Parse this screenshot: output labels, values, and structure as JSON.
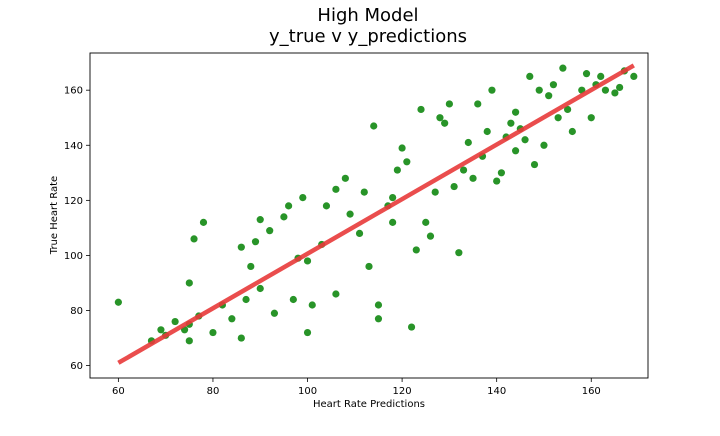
{
  "chart_data": {
    "type": "scatter",
    "title": [
      "High Model",
      "y_true v y_predictions"
    ],
    "xlabel": "Heart Rate Predictions",
    "ylabel": "True Heart Rate",
    "xlim": [
      54,
      172
    ],
    "ylim": [
      55.5,
      173.5
    ],
    "xticks": [
      60,
      80,
      100,
      120,
      140,
      160
    ],
    "yticks": [
      60,
      80,
      100,
      120,
      140,
      160
    ],
    "grid": false,
    "point_color": "#118811",
    "line_color": "#e83a3a",
    "regression_line": {
      "x": [
        60,
        169
      ],
      "y": [
        61,
        169
      ]
    },
    "points": [
      [
        60,
        83
      ],
      [
        67,
        69
      ],
      [
        69,
        73
      ],
      [
        70,
        71
      ],
      [
        72,
        76
      ],
      [
        74,
        73
      ],
      [
        75,
        75
      ],
      [
        75,
        69
      ],
      [
        76,
        106
      ],
      [
        75,
        90
      ],
      [
        77,
        78
      ],
      [
        78,
        112
      ],
      [
        80,
        72
      ],
      [
        82,
        82
      ],
      [
        84,
        77
      ],
      [
        86,
        70
      ],
      [
        86,
        103
      ],
      [
        88,
        96
      ],
      [
        89,
        105
      ],
      [
        90,
        113
      ],
      [
        90,
        88
      ],
      [
        92,
        109
      ],
      [
        93,
        79
      ],
      [
        95,
        114
      ],
      [
        96,
        118
      ],
      [
        97,
        84
      ],
      [
        99,
        121
      ],
      [
        100,
        72
      ],
      [
        101,
        82
      ],
      [
        100,
        98
      ],
      [
        104,
        118
      ],
      [
        106,
        86
      ],
      [
        106,
        124
      ],
      [
        108,
        128
      ],
      [
        111,
        108
      ],
      [
        112,
        123
      ],
      [
        113,
        96
      ],
      [
        114,
        147
      ],
      [
        115,
        82
      ],
      [
        115,
        77
      ],
      [
        117,
        118
      ],
      [
        118,
        112
      ],
      [
        119,
        131
      ],
      [
        120,
        139
      ],
      [
        121,
        134
      ],
      [
        122,
        74
      ],
      [
        123,
        102
      ],
      [
        124,
        153
      ],
      [
        125,
        112
      ],
      [
        126,
        107
      ],
      [
        128,
        150
      ],
      [
        129,
        148
      ],
      [
        130,
        155
      ],
      [
        131,
        125
      ],
      [
        132,
        101
      ],
      [
        133,
        131
      ],
      [
        135,
        128
      ],
      [
        136,
        155
      ],
      [
        138,
        145
      ],
      [
        139,
        160
      ],
      [
        140,
        127
      ],
      [
        141,
        130
      ],
      [
        142,
        143
      ],
      [
        143,
        148
      ],
      [
        144,
        152
      ],
      [
        145,
        146
      ],
      [
        146,
        142
      ],
      [
        147,
        165
      ],
      [
        148,
        133
      ],
      [
        149,
        160
      ],
      [
        150,
        140
      ],
      [
        151,
        158
      ],
      [
        152,
        162
      ],
      [
        153,
        150
      ],
      [
        154,
        168
      ],
      [
        155,
        153
      ],
      [
        156,
        145
      ],
      [
        158,
        160
      ],
      [
        159,
        166
      ],
      [
        160,
        150
      ],
      [
        161,
        162
      ],
      [
        162,
        165
      ],
      [
        163,
        160
      ],
      [
        165,
        159
      ],
      [
        166,
        161
      ],
      [
        167,
        167
      ],
      [
        169,
        165
      ],
      [
        87,
        84
      ],
      [
        98,
        99
      ],
      [
        109,
        115
      ],
      [
        127,
        123
      ],
      [
        137,
        136
      ],
      [
        144,
        138
      ],
      [
        134,
        141
      ],
      [
        118,
        121
      ],
      [
        103,
        104
      ]
    ]
  }
}
